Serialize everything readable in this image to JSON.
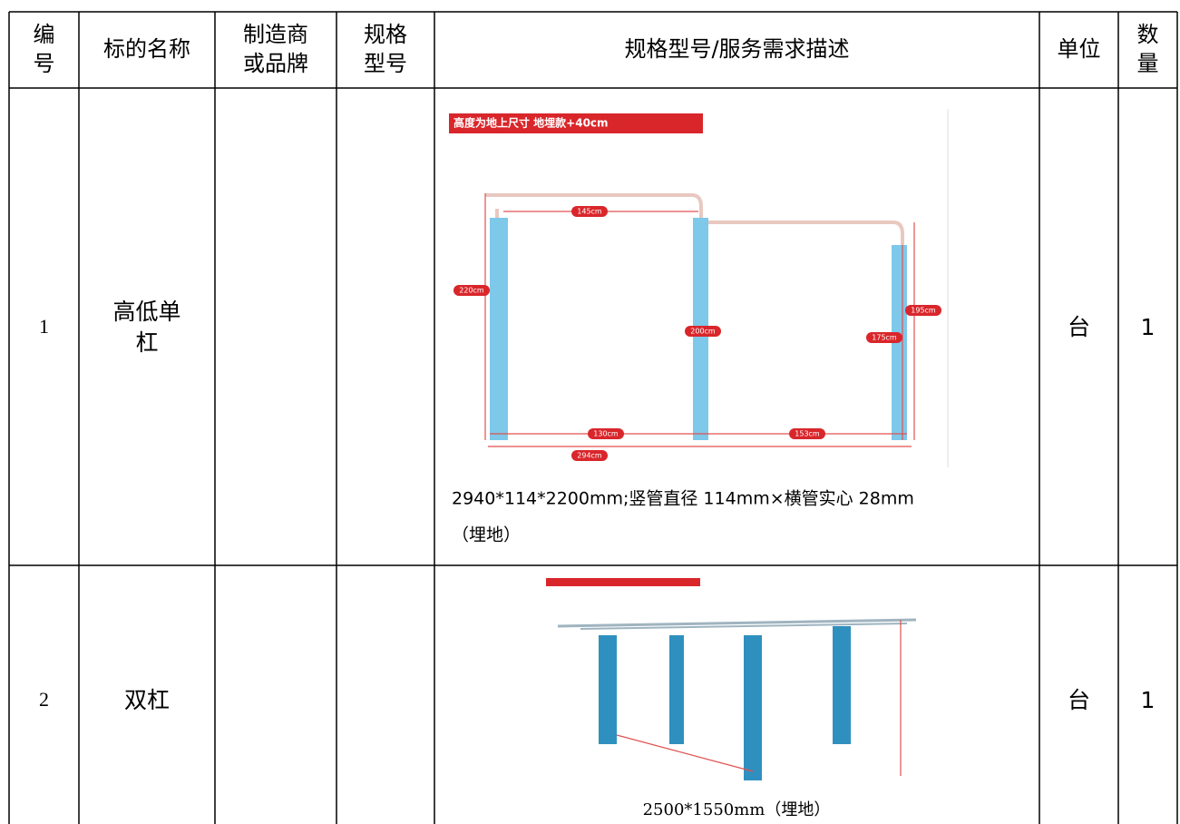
{
  "table": {
    "header": [
      [
        "编",
        "号"
      ],
      [
        "标的名称"
      ],
      [
        "制造商",
        "或品牌"
      ],
      [
        "规格",
        "型号"
      ],
      [
        "规格型号/服务需求描述"
      ],
      [
        "单位"
      ],
      [
        "数",
        "量"
      ]
    ],
    "rows": [
      {
        "no": "1",
        "name": [
          "高低单",
          "杠"
        ],
        "figure": {
          "banner": "高度为地上尺寸 地埋款+40cm",
          "labels": [
            "145cm",
            "220cm",
            "200cm",
            "195cm",
            "175cm",
            "130cm",
            "153cm",
            "294cm"
          ]
        },
        "desc": [
          "2940*114*2200mm;竖管直径 114mm×横管实心 28mm",
          "（埋地）"
        ],
        "unit": "台",
        "qty": "1"
      },
      {
        "no": "2",
        "name": [
          "双杠"
        ],
        "desc": [
          "2500*1550mm（埋地）"
        ],
        "unit": "台",
        "qty": "1"
      }
    ]
  }
}
